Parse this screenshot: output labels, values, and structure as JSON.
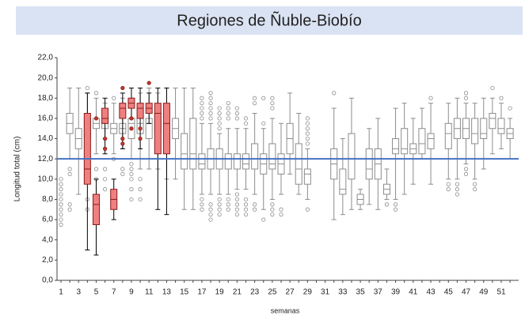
{
  "chart_data": {
    "type": "box",
    "title": "Regiones de Ñuble-Biobío",
    "x_label": "semanas",
    "y_label": "Longitud total (cm)",
    "categories": [
      "1",
      null,
      "3",
      null,
      "5",
      null,
      "7",
      null,
      "9",
      null,
      "11",
      null,
      "13",
      null,
      "15",
      null,
      "17",
      null,
      "19",
      null,
      "21",
      null,
      "23",
      null,
      "25",
      null,
      "27",
      null,
      "29",
      null,
      "31",
      null,
      "33",
      null,
      "35",
      null,
      "37",
      null,
      "39",
      null,
      "41",
      null,
      "43",
      null,
      "45",
      null,
      "47",
      null,
      "49",
      null,
      "51",
      null
    ],
    "ylim": [
      0,
      22
    ],
    "yticks": [
      {
        "value": 0,
        "label": "0,0"
      },
      {
        "value": 2,
        "label": "2,0"
      },
      {
        "value": 4,
        "label": "4,0"
      },
      {
        "value": 6,
        "label": "6,0"
      },
      {
        "value": 8,
        "label": "8,0"
      },
      {
        "value": 10,
        "label": "10,0"
      },
      {
        "value": 12,
        "label": "12,0"
      },
      {
        "value": 14,
        "label": "14,0"
      },
      {
        "value": 16,
        "label": "16,0"
      },
      {
        "value": 18,
        "label": "18,0"
      },
      {
        "value": 20,
        "label": "20,0"
      },
      {
        "value": 22,
        "label": "22,0"
      }
    ],
    "reference_line": {
      "value": 12,
      "color": "#4472c4"
    },
    "series": [
      {
        "color": "#ffffff",
        "edge_color": "#8c8c8c",
        "outlier_color": "#ffffff",
        "boxes": [
          {
            "outliers": [
              5.5,
              6,
              6.5,
              7,
              7.5,
              8,
              8.5,
              9,
              9.5,
              10
            ]
          },
          {
            "min": 12,
            "q1": 14.5,
            "median": 15.5,
            "q3": 16.5,
            "max": 19,
            "outliers": [
              7,
              7.5,
              10.5,
              11
            ]
          },
          {
            "min": 8.5,
            "q1": 13,
            "median": 14,
            "q3": 15,
            "max": 19,
            "outliers": []
          },
          {
            "min": 10,
            "q1": 14,
            "median": 15,
            "q3": 16,
            "max": 18.5,
            "outliers": [
              7,
              8,
              19
            ]
          },
          {
            "min": 12.5,
            "q1": 15,
            "median": 15.5,
            "q3": 16,
            "max": 18,
            "outliers": [
              10,
              11,
              18.5
            ]
          },
          {
            "min": 14,
            "q1": 15,
            "median": 15.5,
            "q3": 16,
            "max": 17.5,
            "outliers": [
              9,
              10,
              11
            ]
          },
          {
            "min": 12.5,
            "q1": 14.5,
            "median": 15,
            "q3": 15.5,
            "max": 17.5,
            "outliers": [
              12,
              18
            ]
          },
          {
            "min": 13,
            "q1": 14.5,
            "median": 15,
            "q3": 15.5,
            "max": 18,
            "outliers": [
              10.5,
              11
            ]
          },
          {
            "min": 12,
            "q1": 14,
            "median": 15.5,
            "q3": 16,
            "max": 18,
            "outliers": [
              8,
              9,
              10,
              10.5,
              11,
              11.5
            ]
          },
          {
            "min": 11,
            "q1": 14.5,
            "median": 15.5,
            "q3": 16,
            "max": 18.5,
            "outliers": [
              8,
              9,
              10
            ]
          },
          {
            "min": 11,
            "q1": 14,
            "median": 15.5,
            "q3": 16,
            "max": 19,
            "outliers": []
          },
          {
            "min": 11,
            "q1": 14.5,
            "median": 15.5,
            "q3": 16.5,
            "max": 18.5,
            "outliers": []
          },
          {
            "min": 10,
            "q1": 13.5,
            "median": 14.5,
            "q3": 15.5,
            "max": 19,
            "outliers": []
          },
          {
            "min": 10,
            "q1": 14,
            "median": 15,
            "q3": 16,
            "max": 19,
            "outliers": []
          },
          {
            "min": 7,
            "q1": 11,
            "median": 12.5,
            "q3": 14.5,
            "max": 19,
            "outliers": []
          },
          {
            "min": 7,
            "q1": 11,
            "median": 12.5,
            "q3": 16,
            "max": 19,
            "outliers": []
          },
          {
            "min": 8.5,
            "q1": 11,
            "median": 11.5,
            "q3": 12.5,
            "max": 15.5,
            "outliers": [
              7,
              7.5,
              8,
              16,
              16.5,
              17,
              17.5,
              18
            ]
          },
          {
            "min": 8.5,
            "q1": 11,
            "median": 12,
            "q3": 13,
            "max": 15.5,
            "outliers": [
              6,
              6.5,
              7,
              7.5,
              16,
              16.5,
              17,
              17.5,
              18,
              18.5
            ]
          },
          {
            "min": 8.5,
            "q1": 11,
            "median": 12,
            "q3": 13,
            "max": 14.5,
            "outliers": [
              6.5,
              7,
              7.5,
              8,
              15,
              15.5,
              16,
              16.5,
              17
            ]
          },
          {
            "min": 8.5,
            "q1": 11,
            "median": 12,
            "q3": 12.5,
            "max": 15,
            "outliers": [
              7,
              7.5,
              8,
              16,
              16.5,
              17,
              17.5
            ]
          },
          {
            "min": 9,
            "q1": 11,
            "median": 12,
            "q3": 12.5,
            "max": 15,
            "outliers": [
              6.5,
              7,
              7.5,
              8,
              8.5,
              16,
              16.5,
              17
            ]
          },
          {
            "min": 9,
            "q1": 11,
            "median": 11.5,
            "q3": 12.5,
            "max": 15,
            "outliers": [
              6.5,
              7,
              7.5,
              8,
              15.5,
              16
            ]
          },
          {
            "min": 8.5,
            "q1": 11,
            "median": 12,
            "q3": 13.5,
            "max": 16.5,
            "outliers": [
              7,
              7.5,
              17.5,
              18
            ]
          },
          {
            "min": 7,
            "q1": 10.5,
            "median": 11.5,
            "q3": 12.5,
            "max": 15,
            "outliers": [
              6,
              15.5,
              18
            ]
          },
          {
            "min": 8,
            "q1": 11,
            "median": 11.5,
            "q3": 13.5,
            "max": 16,
            "outliers": [
              6.5,
              7,
              7.5,
              17,
              17.5,
              18
            ]
          },
          {
            "min": 8.5,
            "q1": 10.5,
            "median": 11.5,
            "q3": 12.5,
            "max": 15.5,
            "outliers": [
              6.5,
              7
            ]
          },
          {
            "min": 10.5,
            "q1": 12.5,
            "median": 14,
            "q3": 15.5,
            "max": 18.5,
            "outliers": []
          },
          {
            "min": 8.5,
            "q1": 9.5,
            "median": 11,
            "q3": 13.5,
            "max": 16.5,
            "outliers": []
          },
          {
            "min": 8,
            "q1": 9.5,
            "median": 10.5,
            "q3": 11,
            "max": 13,
            "outliers": [
              7,
              13.5,
              14,
              14.5,
              15,
              15.5,
              16
            ]
          },
          null,
          null,
          {
            "min": 6,
            "q1": 10,
            "median": 11.5,
            "q3": 13,
            "max": 17,
            "outliers": [
              18.5
            ]
          },
          {
            "min": 6.5,
            "q1": 8.5,
            "median": 9,
            "q3": 11,
            "max": 14,
            "outliers": []
          },
          {
            "min": 7,
            "q1": 10,
            "median": 12,
            "q3": 14.5,
            "max": 18,
            "outliers": []
          },
          {
            "min": 7,
            "q1": 7.5,
            "median": 8,
            "q3": 8.5,
            "max": 9,
            "outliers": []
          },
          {
            "min": 7.5,
            "q1": 10,
            "median": 11,
            "q3": 13,
            "max": 15,
            "outliers": []
          },
          {
            "min": 7,
            "q1": 10,
            "median": 11.5,
            "q3": 13,
            "max": 16,
            "outliers": []
          },
          {
            "min": 8,
            "q1": 8.5,
            "median": 9,
            "q3": 9.5,
            "max": 11,
            "outliers": [
              7.5
            ]
          },
          {
            "min": 8,
            "q1": 12.5,
            "median": 13,
            "q3": 14,
            "max": 17,
            "outliers": [
              7,
              7.5
            ]
          },
          {
            "min": 8.5,
            "q1": 12.5,
            "median": 13,
            "q3": 15,
            "max": 17.5,
            "outliers": []
          },
          {
            "min": 9.5,
            "q1": 12.5,
            "median": 13,
            "q3": 13.5,
            "max": 16,
            "outliers": []
          },
          {
            "min": 12,
            "q1": 12.5,
            "median": 13.5,
            "q3": 15,
            "max": 17,
            "outliers": []
          },
          {
            "min": 9.5,
            "q1": 13,
            "median": 14,
            "q3": 14.5,
            "max": 17.5,
            "outliers": [
              18
            ]
          },
          null,
          {
            "min": 10,
            "q1": 13,
            "median": 14.5,
            "q3": 15.5,
            "max": 17.5,
            "outliers": [
              9,
              9.5
            ]
          },
          {
            "min": 10,
            "q1": 14,
            "median": 15,
            "q3": 16,
            "max": 18,
            "outliers": [
              8.5,
              9,
              9.5
            ]
          },
          {
            "min": 11.5,
            "q1": 14,
            "median": 15,
            "q3": 16,
            "max": 17.5,
            "outliers": [
              10.5,
              11,
              18,
              18.5
            ]
          },
          {
            "min": 10,
            "q1": 13.5,
            "median": 14.5,
            "q3": 16,
            "max": 17.5,
            "outliers": [
              9,
              9.5
            ]
          },
          {
            "min": 11,
            "q1": 14,
            "median": 14.5,
            "q3": 16,
            "max": 18,
            "outliers": []
          },
          {
            "min": 12.5,
            "q1": 15,
            "median": 16,
            "q3": 16.5,
            "max": 18,
            "outliers": [
              19
            ]
          },
          {
            "min": 13,
            "q1": 14.5,
            "median": 15,
            "q3": 16,
            "max": 17.5,
            "outliers": [
              18
            ]
          },
          {
            "min": 12,
            "q1": 14,
            "median": 14.5,
            "q3": 15,
            "max": 16,
            "outliers": [
              17
            ]
          }
        ]
      },
      {
        "color": "#f08080",
        "edge_color": "#8b1a1a",
        "outlier_color": "#c0392b",
        "boxes": [
          null,
          null,
          null,
          {
            "min": 3,
            "q1": 9.5,
            "median": 11,
            "q3": 16.5,
            "max": 18.5,
            "outliers": []
          },
          {
            "min": 2.5,
            "q1": 5.5,
            "median": 7.5,
            "q3": 8.5,
            "max": 10,
            "outliers": [
              16
            ]
          },
          {
            "min": 12.5,
            "q1": 15.5,
            "median": 16,
            "q3": 17,
            "max": 18,
            "outliers": [
              13,
              14
            ]
          },
          {
            "min": 6,
            "q1": 7,
            "median": 8,
            "q3": 9,
            "max": 10,
            "outliers": []
          },
          {
            "min": 13,
            "q1": 16,
            "median": 17,
            "q3": 17.5,
            "max": 18.5,
            "outliers": [
              13.5,
              14,
              19
            ]
          },
          {
            "min": 16,
            "q1": 17,
            "median": 17.5,
            "q3": 18,
            "max": 19,
            "outliers": [
              15,
              16
            ]
          },
          {
            "min": 13,
            "q1": 16,
            "median": 17,
            "q3": 17.5,
            "max": 19,
            "outliers": [
              14,
              15
            ]
          },
          {
            "min": 15.5,
            "q1": 16.5,
            "median": 17,
            "q3": 17.5,
            "max": 18.5,
            "outliers": [
              19.5
            ]
          },
          {
            "min": 7,
            "q1": 12.5,
            "median": 16.5,
            "q3": 17.5,
            "max": 19,
            "outliers": []
          },
          {
            "min": 6.5,
            "q1": 12.5,
            "median": 15.5,
            "q3": 17.5,
            "max": 19,
            "outliers": []
          }
        ]
      }
    ]
  }
}
